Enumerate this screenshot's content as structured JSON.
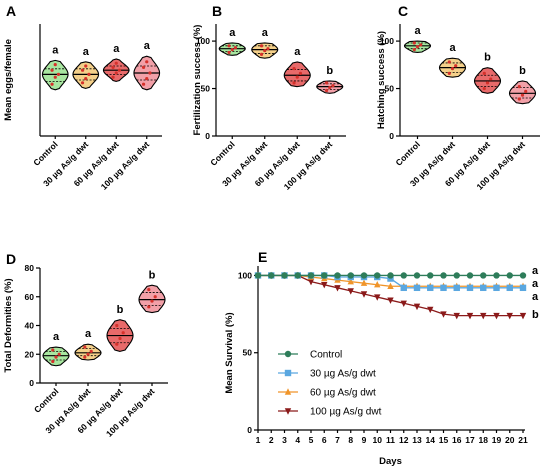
{
  "chart_data": [
    {
      "id": "A",
      "type": "violin",
      "panel_label": "A",
      "ylabel": "Mean eggs/female",
      "yticks": [],
      "ylim": [
        60,
        140
      ],
      "categories": [
        "Control",
        "30 µg As/g dwt",
        "60 µg As/g dwt",
        "100 µg As/g dwt"
      ],
      "fill_colors": [
        "#a8e6a0",
        "#f4d08a",
        "#e86a6a",
        "#f2a0a8"
      ],
      "significance": [
        "a",
        "a",
        "a",
        "a"
      ],
      "groups": [
        {
          "median": 104,
          "q1": 99,
          "q3": 108,
          "min": 93,
          "max": 114,
          "points": [
            97,
            102,
            104,
            107,
            111
          ]
        },
        {
          "median": 104,
          "q1": 100,
          "q3": 108,
          "min": 94,
          "max": 113,
          "points": [
            98,
            101,
            104,
            107,
            110
          ]
        },
        {
          "median": 107,
          "q1": 104,
          "q3": 110,
          "min": 99,
          "max": 115,
          "points": [
            102,
            105,
            107,
            109,
            112
          ]
        },
        {
          "median": 105,
          "q1": 100,
          "q3": 110,
          "min": 93,
          "max": 117,
          "points": [
            97,
            101,
            105,
            109,
            113
          ]
        }
      ]
    },
    {
      "id": "B",
      "type": "violin",
      "panel_label": "B",
      "ylabel": "Fertilization success (%)",
      "yticks": [
        0,
        50,
        100
      ],
      "ylim": [
        0,
        118
      ],
      "categories": [
        "Control",
        "30 µg As/g dwt",
        "60 µg As/g dwt",
        "100 µg As/g dwt"
      ],
      "fill_colors": [
        "#a8e6a0",
        "#f4d08a",
        "#e86a6a",
        "#f2a0a8"
      ],
      "significance": [
        "a",
        "a",
        "a",
        "b"
      ],
      "groups": [
        {
          "median": 92,
          "q1": 89,
          "q3": 95,
          "min": 85,
          "max": 98,
          "points": [
            88,
            91,
            93,
            95
          ]
        },
        {
          "median": 91,
          "q1": 87,
          "q3": 95,
          "min": 82,
          "max": 98,
          "points": [
            86,
            90,
            92,
            95
          ]
        },
        {
          "median": 64,
          "q1": 58,
          "q3": 70,
          "min": 52,
          "max": 78,
          "points": [
            56,
            62,
            66,
            71
          ]
        },
        {
          "median": 52,
          "q1": 49,
          "q3": 55,
          "min": 45,
          "max": 58,
          "points": [
            48,
            51,
            53,
            56
          ]
        }
      ]
    },
    {
      "id": "C",
      "type": "violin",
      "panel_label": "C",
      "ylabel": "Hatching success (%)",
      "yticks": [
        0,
        50,
        100
      ],
      "ylim": [
        0,
        118
      ],
      "categories": [
        "Control",
        "30 µg As/g dwt",
        "60 µg As/g dwt",
        "100 µg As/g dwt"
      ],
      "fill_colors": [
        "#a8e6a0",
        "#f4d08a",
        "#e86a6a",
        "#f2a0a8"
      ],
      "significance": [
        "a",
        "a",
        "b",
        "b"
      ],
      "groups": [
        {
          "median": 95,
          "q1": 92,
          "q3": 98,
          "min": 88,
          "max": 100,
          "points": [
            91,
            94,
            96,
            98
          ]
        },
        {
          "median": 72,
          "q1": 67,
          "q3": 77,
          "min": 62,
          "max": 82,
          "points": [
            66,
            71,
            74,
            78
          ]
        },
        {
          "median": 58,
          "q1": 52,
          "q3": 64,
          "min": 45,
          "max": 72,
          "points": [
            50,
            56,
            60,
            66
          ]
        },
        {
          "median": 45,
          "q1": 40,
          "q3": 51,
          "min": 34,
          "max": 58,
          "points": [
            39,
            43,
            47,
            52
          ]
        }
      ]
    },
    {
      "id": "D",
      "type": "violin",
      "panel_label": "D",
      "ylabel": "Total Deformities (%)",
      "yticks": [
        0,
        20,
        40,
        60,
        80
      ],
      "ylim": [
        0,
        80
      ],
      "categories": [
        "Control",
        "30 µg As/g dwt",
        "60 µg As/g dwt",
        "100 µg As/g dwt"
      ],
      "fill_colors": [
        "#a8e6a0",
        "#f4d08a",
        "#e86a6a",
        "#f2a0a8"
      ],
      "significance": [
        "a",
        "a",
        "b",
        "b"
      ],
      "groups": [
        {
          "median": 19,
          "q1": 16,
          "q3": 22,
          "min": 12,
          "max": 25,
          "points": [
            15,
            18,
            20,
            23
          ]
        },
        {
          "median": 21,
          "q1": 19,
          "q3": 24,
          "min": 16,
          "max": 27,
          "points": [
            18,
            20,
            22,
            25
          ]
        },
        {
          "median": 33,
          "q1": 28,
          "q3": 38,
          "min": 22,
          "max": 44,
          "points": [
            27,
            31,
            35,
            40
          ]
        },
        {
          "median": 58,
          "q1": 54,
          "q3": 63,
          "min": 49,
          "max": 68,
          "points": [
            53,
            57,
            60,
            65
          ]
        }
      ]
    },
    {
      "id": "E",
      "type": "line",
      "panel_label": "E",
      "xlabel": "Days",
      "ylabel": "Mean Survival (%)",
      "x": [
        1,
        2,
        3,
        4,
        5,
        6,
        7,
        8,
        9,
        10,
        11,
        12,
        13,
        14,
        15,
        16,
        17,
        18,
        19,
        20,
        21
      ],
      "xlim": [
        1,
        21
      ],
      "ylim": [
        0,
        110
      ],
      "yticks": [
        0,
        50,
        100
      ],
      "legend_position": "center-left",
      "series": [
        {
          "name": "Control",
          "color": "#2e7d5a",
          "marker": "circle",
          "values": [
            100,
            100,
            100,
            100,
            100,
            100,
            100,
            100,
            100,
            100,
            100,
            100,
            100,
            100,
            100,
            100,
            100,
            100,
            100,
            100,
            100
          ],
          "sig": "a"
        },
        {
          "name": "30 µg As/g dwt",
          "color": "#5aa7e0",
          "marker": "square",
          "values": [
            100,
            100,
            100,
            100,
            100,
            100,
            99,
            99,
            99,
            99,
            98,
            92,
            92,
            92,
            92,
            92,
            92,
            92,
            92,
            92,
            92
          ],
          "sig": "a"
        },
        {
          "name": "60 µg As/g dwt",
          "color": "#f0952a",
          "marker": "triangle-up",
          "values": [
            100,
            100,
            100,
            100,
            99,
            98,
            97,
            96,
            95,
            94,
            93,
            93,
            93,
            93,
            93,
            93,
            93,
            93,
            93,
            93,
            93
          ],
          "sig": "a"
        },
        {
          "name": "100 µg As/g dwt",
          "color": "#8b1a1a",
          "marker": "triangle-down",
          "values": [
            100,
            100,
            100,
            100,
            96,
            94,
            92,
            90,
            88,
            86,
            84,
            82,
            80,
            78,
            75,
            74,
            74,
            74,
            74,
            74,
            74
          ],
          "sig": "b"
        }
      ]
    }
  ]
}
